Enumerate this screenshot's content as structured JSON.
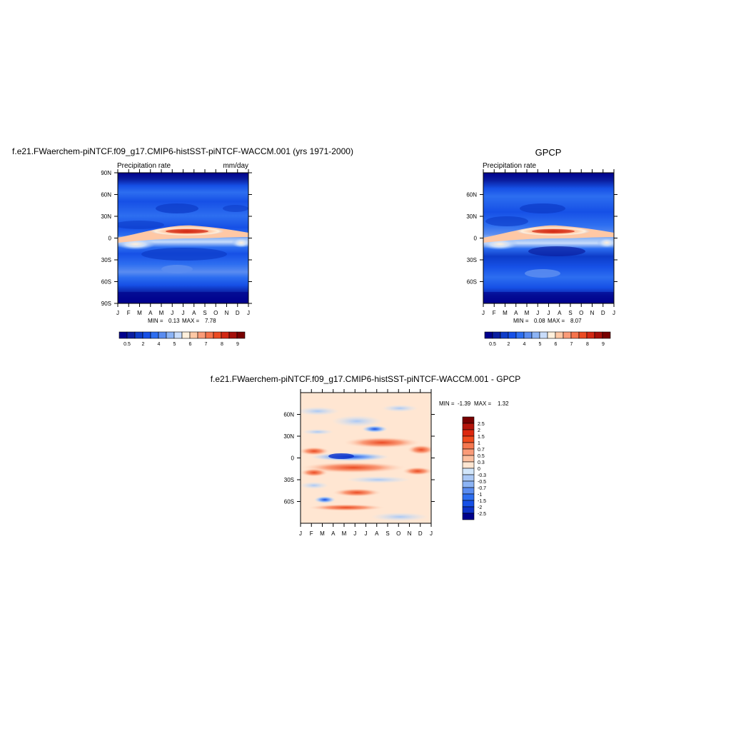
{
  "chart_data": [
    {
      "type": "heatmap",
      "title": "f.e21.FWaerchem-piNTCF.f09_g17.CMIP6-histSST-piNTCF-WACCM.001 (yrs 1971-2000)",
      "left_label": "Precipitation rate",
      "right_label": "mm/day",
      "x_ticks": [
        "J",
        "F",
        "M",
        "A",
        "M",
        "J",
        "J",
        "A",
        "S",
        "O",
        "N",
        "D",
        "J"
      ],
      "y_ticks": [
        "90N",
        "60N",
        "30N",
        "0",
        "30S",
        "60S",
        "90S"
      ],
      "stats": {
        "min_label": "MIN =",
        "min": "0.13",
        "max_label": "MAX =",
        "max": "7.78"
      },
      "colorbar": {
        "orientation": "horizontal",
        "colors": [
          "#00008c",
          "#0a1ea0",
          "#0d3cc8",
          "#1650e6",
          "#2d6ef0",
          "#5a8cf0",
          "#8cb4f5",
          "#c8dcfa",
          "#fff0dc",
          "#ffc8a5",
          "#fa9b78",
          "#f5734b",
          "#eb4b23",
          "#d22814",
          "#a50f0a",
          "#780000"
        ],
        "labels": [
          "0.5",
          "2",
          "4",
          "5",
          "6",
          "7",
          "8",
          "9"
        ]
      }
    },
    {
      "type": "heatmap",
      "title": "GPCP",
      "left_label": "Precipitation rate",
      "x_ticks": [
        "J",
        "F",
        "M",
        "A",
        "M",
        "J",
        "J",
        "A",
        "S",
        "O",
        "N",
        "D",
        "J"
      ],
      "y_ticks": [
        "60N",
        "30N",
        "0",
        "30S",
        "60S"
      ],
      "stats": {
        "min_label": "MIN =",
        "min": "0.08",
        "max_label": "MAX =",
        "max": "8.07"
      },
      "colorbar": {
        "orientation": "horizontal",
        "colors": [
          "#00008c",
          "#0a1ea0",
          "#0d3cc8",
          "#1650e6",
          "#2d6ef0",
          "#5a8cf0",
          "#8cb4f5",
          "#c8dcfa",
          "#fff0dc",
          "#ffc8a5",
          "#fa9b78",
          "#f5734b",
          "#eb4b23",
          "#d22814",
          "#a50f0a",
          "#780000"
        ],
        "labels": [
          "0.5",
          "2",
          "4",
          "5",
          "6",
          "7",
          "8",
          "9"
        ]
      }
    },
    {
      "type": "heatmap",
      "title": "f.e21.FWaerchem-piNTCF.f09_g17.CMIP6-histSST-piNTCF-WACCM.001 - GPCP",
      "x_ticks": [
        "J",
        "F",
        "M",
        "A",
        "M",
        "J",
        "J",
        "A",
        "S",
        "O",
        "N",
        "D",
        "J"
      ],
      "y_ticks": [
        "60N",
        "30N",
        "0",
        "30S",
        "60S"
      ],
      "stats": {
        "min_label": "MIN =",
        "min": "-1.39",
        "max_label": "MAX =",
        "max": "1.32"
      },
      "colorbar": {
        "orientation": "vertical",
        "colors": [
          "#780000",
          "#b4140a",
          "#dc280f",
          "#f04b1e",
          "#f57850",
          "#fa9b78",
          "#fcc0a0",
          "#ffe6d2",
          "#d2e6fa",
          "#aac8f5",
          "#8cb4f5",
          "#5a8cf0",
          "#2d6ef0",
          "#1650e6",
          "#0d32c8",
          "#00008c"
        ],
        "labels": [
          "2.5",
          "2",
          "1.5",
          "1",
          "0.7",
          "0.5",
          "0.3",
          "0",
          "-0.3",
          "-0.5",
          "-0.7",
          "-1",
          "-1.5",
          "-2",
          "-2.5"
        ]
      }
    }
  ]
}
